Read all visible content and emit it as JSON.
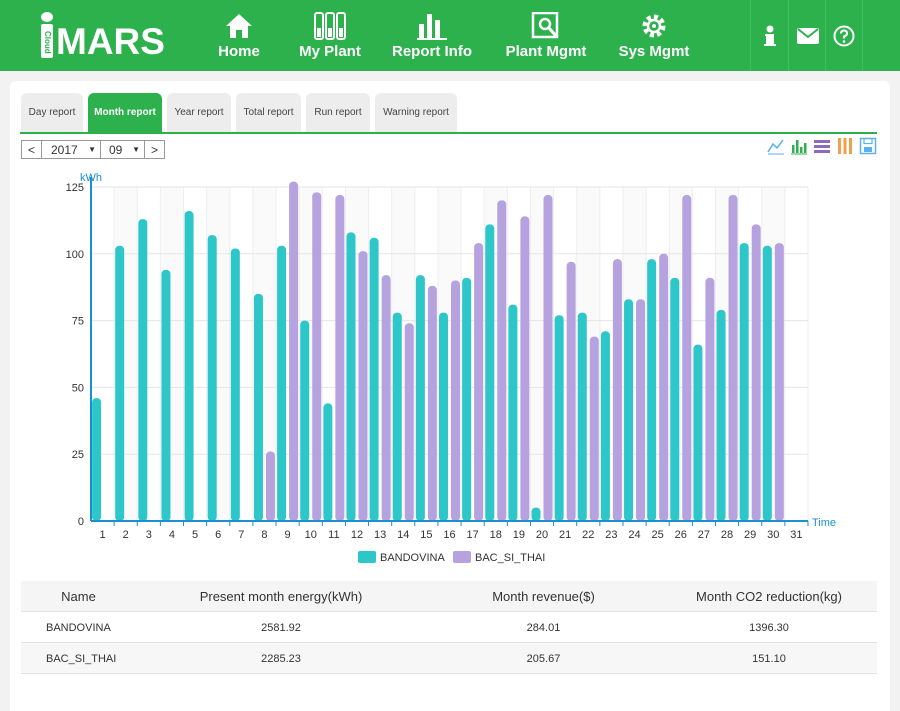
{
  "header": {
    "logo_text": "MARS",
    "logo_cloud": "Cloud",
    "nav": [
      {
        "label": "Home",
        "icon": "home-icon"
      },
      {
        "label": "My Plant",
        "icon": "plant-icon"
      },
      {
        "label": "Report Info",
        "icon": "bar-chart-icon"
      },
      {
        "label": "Plant Mgmt",
        "icon": "plant-mgmt-icon"
      },
      {
        "label": "Sys Mgmt",
        "icon": "gear-icon"
      }
    ],
    "right_icons": [
      "info-icon",
      "mail-icon",
      "help-icon"
    ]
  },
  "tabs": [
    {
      "label": "Day report",
      "active": false
    },
    {
      "label": "Month report",
      "active": true
    },
    {
      "label": "Year report",
      "active": false
    },
    {
      "label": "Total report",
      "active": false
    },
    {
      "label": "Run report",
      "active": false
    },
    {
      "label": "Warning report",
      "active": false
    }
  ],
  "date": {
    "prev": "<",
    "year": "2017",
    "month": "09",
    "next": ">"
  },
  "toolbar": [
    "line-chart-icon",
    "bar-chart-icon",
    "stack-icon",
    "tiled-icon",
    "save-icon"
  ],
  "chart_data": {
    "type": "bar",
    "ylabel": "kWh",
    "xlabel": "Time",
    "ylim": [
      0,
      125
    ],
    "yticks": [
      0,
      25,
      50,
      75,
      100,
      125
    ],
    "categories": [
      "1",
      "2",
      "3",
      "4",
      "5",
      "6",
      "7",
      "8",
      "9",
      "10",
      "11",
      "12",
      "13",
      "14",
      "15",
      "16",
      "17",
      "18",
      "19",
      "20",
      "21",
      "22",
      "23",
      "24",
      "25",
      "26",
      "27",
      "28",
      "29",
      "30",
      "31"
    ],
    "series": [
      {
        "name": "BANDOVINA",
        "color": "#2ec7c9",
        "values": [
          46,
          103,
          113,
          94,
          116,
          107,
          102,
          85,
          103,
          75,
          44,
          108,
          106,
          78,
          92,
          78,
          91,
          111,
          81,
          5,
          77,
          78,
          71,
          83,
          98,
          91,
          66,
          79,
          104,
          103,
          null
        ]
      },
      {
        "name": "BAC_SI_THAI",
        "color": "#b6a2de",
        "values": [
          null,
          null,
          null,
          null,
          null,
          null,
          null,
          26,
          127,
          123,
          122,
          101,
          92,
          74,
          88,
          90,
          104,
          120,
          114,
          122,
          97,
          69,
          98,
          83,
          100,
          122,
          91,
          122,
          111,
          104,
          null
        ]
      }
    ],
    "legend_position": "bottom-center",
    "grid": true
  },
  "table": {
    "headers": [
      "Name",
      "Present month energy(kWh)",
      "Month revenue($)",
      "Month CO2 reduction(kg)"
    ],
    "rows": [
      [
        "BANDOVINA",
        "2581.92",
        "284.01",
        "1396.30"
      ],
      [
        "BAC_SI_THAI",
        "2285.23",
        "205.67",
        "151.10"
      ]
    ]
  }
}
